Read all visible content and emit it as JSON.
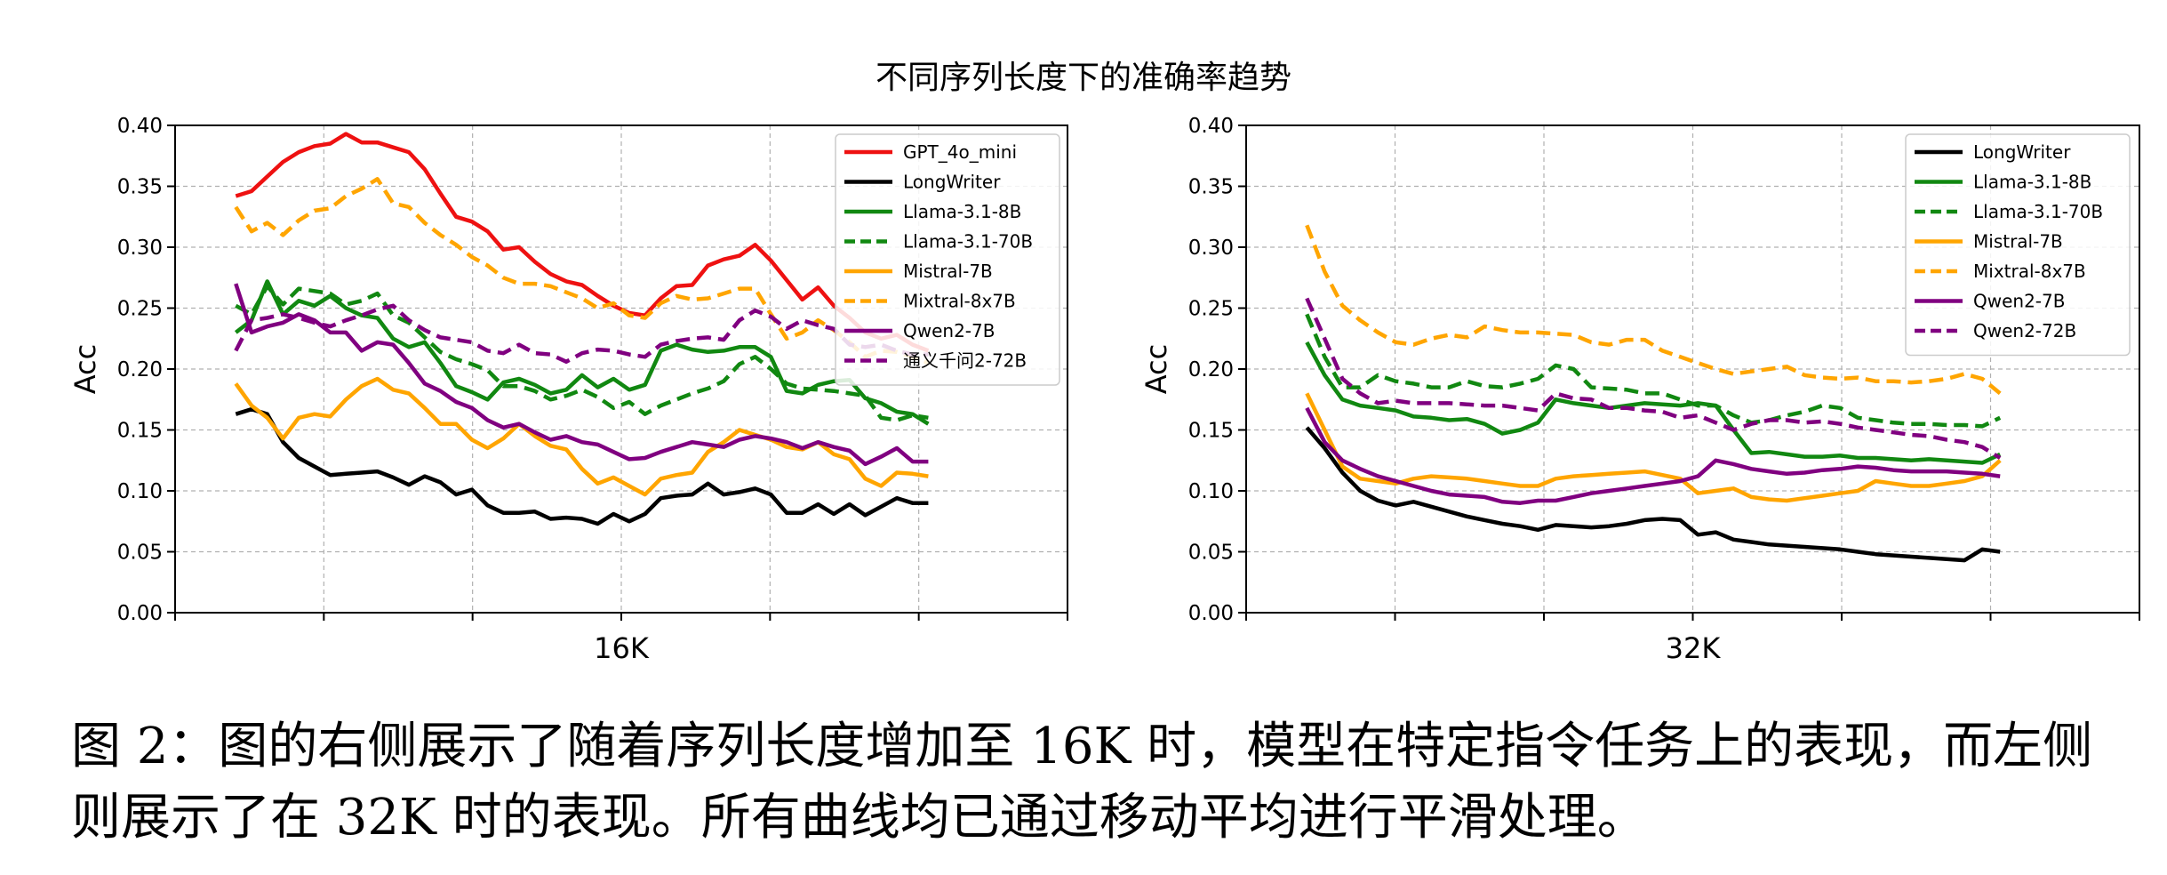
{
  "figure": {
    "title": "不同序列长度下的准确率趋势",
    "caption": "图 2：图的右侧展示了随着序列长度增加至 16K 时，模型在特定指令任务上的表现，而左侧则展示了在 32K 时的表现。所有曲线均已通过移动平均进行平滑处理。"
  },
  "colors": {
    "red": "#ee1111",
    "black": "#000000",
    "green": "#118811",
    "orange": "#ffa500",
    "purple": "#800080",
    "grid": "#b0b0b0"
  },
  "chart_data": [
    {
      "type": "line",
      "xlabel": "16K",
      "ylabel": "Acc",
      "ylim": [
        0,
        0.4
      ],
      "yticks": [
        "0.00",
        "0.05",
        "0.10",
        "0.15",
        "0.20",
        "0.25",
        "0.30",
        "0.35",
        "0.40"
      ],
      "grid": true,
      "legend_position": "top-right",
      "series": [
        {
          "name": "GPT_4o_mini",
          "color": "#ee1111",
          "dash": false,
          "values": [
            0.342,
            0.346,
            0.358,
            0.37,
            0.378,
            0.383,
            0.385,
            0.393,
            0.386,
            0.386,
            0.382,
            0.378,
            0.364,
            0.344,
            0.325,
            0.321,
            0.313,
            0.298,
            0.3,
            0.288,
            0.278,
            0.272,
            0.269,
            0.26,
            0.252,
            0.246,
            0.244,
            0.258,
            0.268,
            0.269,
            0.285,
            0.29,
            0.293,
            0.302,
            0.289,
            0.273,
            0.257,
            0.267,
            0.252,
            0.242,
            0.23,
            0.225,
            0.228,
            0.22,
            0.215
          ]
        },
        {
          "name": "LongWriter",
          "color": "#000000",
          "dash": false,
          "values": [
            0.163,
            0.167,
            0.163,
            0.14,
            0.127,
            0.12,
            0.113,
            0.114,
            0.115,
            0.116,
            0.111,
            0.105,
            0.112,
            0.107,
            0.097,
            0.101,
            0.088,
            0.082,
            0.082,
            0.083,
            0.077,
            0.078,
            0.077,
            0.073,
            0.081,
            0.075,
            0.081,
            0.094,
            0.096,
            0.097,
            0.106,
            0.097,
            0.099,
            0.102,
            0.097,
            0.082,
            0.082,
            0.089,
            0.081,
            0.089,
            0.08,
            0.087,
            0.094,
            0.09,
            0.09
          ]
        },
        {
          "name": "Llama-3.1-8B",
          "color": "#118811",
          "dash": false,
          "values": [
            0.23,
            0.24,
            0.272,
            0.245,
            0.256,
            0.252,
            0.26,
            0.25,
            0.244,
            0.242,
            0.225,
            0.218,
            0.222,
            0.205,
            0.186,
            0.181,
            0.175,
            0.189,
            0.192,
            0.187,
            0.18,
            0.183,
            0.195,
            0.185,
            0.192,
            0.183,
            0.187,
            0.215,
            0.22,
            0.216,
            0.214,
            0.215,
            0.218,
            0.218,
            0.21,
            0.182,
            0.18,
            0.187,
            0.19,
            0.191,
            0.176,
            0.172,
            0.165,
            0.163,
            0.155
          ]
        },
        {
          "name": "Llama-3.1-70B",
          "color": "#118811",
          "dash": true,
          "values": [
            0.252,
            0.245,
            0.268,
            0.253,
            0.266,
            0.264,
            0.262,
            0.253,
            0.256,
            0.262,
            0.244,
            0.238,
            0.226,
            0.214,
            0.208,
            0.204,
            0.199,
            0.186,
            0.186,
            0.182,
            0.175,
            0.178,
            0.183,
            0.177,
            0.168,
            0.173,
            0.163,
            0.17,
            0.175,
            0.18,
            0.184,
            0.19,
            0.204,
            0.21,
            0.2,
            0.188,
            0.184,
            0.183,
            0.182,
            0.18,
            0.178,
            0.16,
            0.158,
            0.162,
            0.16
          ]
        },
        {
          "name": "Mistral-7B",
          "color": "#ffa500",
          "dash": false,
          "values": [
            0.188,
            0.17,
            0.16,
            0.143,
            0.16,
            0.163,
            0.161,
            0.175,
            0.186,
            0.192,
            0.183,
            0.18,
            0.168,
            0.155,
            0.155,
            0.142,
            0.135,
            0.143,
            0.155,
            0.145,
            0.137,
            0.134,
            0.118,
            0.106,
            0.111,
            0.104,
            0.097,
            0.11,
            0.113,
            0.115,
            0.132,
            0.14,
            0.15,
            0.146,
            0.142,
            0.136,
            0.134,
            0.14,
            0.13,
            0.126,
            0.11,
            0.104,
            0.115,
            0.114,
            0.112
          ]
        },
        {
          "name": "Mixtral-8x7B",
          "color": "#ffa500",
          "dash": true,
          "values": [
            0.333,
            0.313,
            0.32,
            0.31,
            0.322,
            0.33,
            0.332,
            0.342,
            0.348,
            0.356,
            0.336,
            0.333,
            0.32,
            0.31,
            0.302,
            0.292,
            0.285,
            0.275,
            0.27,
            0.27,
            0.268,
            0.263,
            0.258,
            0.25,
            0.254,
            0.244,
            0.242,
            0.254,
            0.26,
            0.257,
            0.258,
            0.262,
            0.266,
            0.266,
            0.245,
            0.225,
            0.23,
            0.24,
            0.232,
            0.222,
            0.21,
            0.215,
            0.214,
            0.21,
            0.205
          ]
        },
        {
          "name": "Qwen2-7B",
          "color": "#800080",
          "dash": false,
          "values": [
            0.27,
            0.23,
            0.235,
            0.238,
            0.245,
            0.24,
            0.23,
            0.23,
            0.215,
            0.222,
            0.22,
            0.205,
            0.188,
            0.182,
            0.173,
            0.168,
            0.158,
            0.152,
            0.155,
            0.148,
            0.142,
            0.145,
            0.14,
            0.138,
            0.132,
            0.126,
            0.127,
            0.132,
            0.136,
            0.14,
            0.138,
            0.136,
            0.142,
            0.145,
            0.143,
            0.14,
            0.135,
            0.14,
            0.136,
            0.133,
            0.122,
            0.128,
            0.135,
            0.124,
            0.124
          ]
        },
        {
          "name": "通义千问2-72B",
          "color": "#800080",
          "dash": true,
          "values": [
            0.215,
            0.24,
            0.242,
            0.245,
            0.242,
            0.238,
            0.235,
            0.24,
            0.244,
            0.249,
            0.252,
            0.24,
            0.232,
            0.226,
            0.224,
            0.222,
            0.215,
            0.213,
            0.22,
            0.213,
            0.212,
            0.206,
            0.213,
            0.216,
            0.215,
            0.212,
            0.21,
            0.22,
            0.223,
            0.225,
            0.226,
            0.224,
            0.24,
            0.248,
            0.243,
            0.233,
            0.24,
            0.236,
            0.233,
            0.22,
            0.218,
            0.22,
            0.215,
            0.212,
            0.212
          ]
        }
      ]
    },
    {
      "type": "line",
      "xlabel": "32K",
      "ylabel": "Acc",
      "ylim": [
        0,
        0.4
      ],
      "yticks": [
        "0.00",
        "0.05",
        "0.10",
        "0.15",
        "0.20",
        "0.25",
        "0.30",
        "0.35",
        "0.40"
      ],
      "grid": true,
      "legend_position": "top-right",
      "series": [
        {
          "name": "LongWriter",
          "color": "#000000",
          "dash": false,
          "values": [
            0.152,
            0.135,
            0.115,
            0.1,
            0.092,
            0.088,
            0.091,
            0.087,
            0.083,
            0.079,
            0.076,
            0.073,
            0.071,
            0.068,
            0.072,
            0.071,
            0.07,
            0.071,
            0.073,
            0.076,
            0.077,
            0.076,
            0.064,
            0.066,
            0.06,
            0.058,
            0.056,
            0.055,
            0.054,
            0.053,
            0.052,
            0.05,
            0.048,
            0.047,
            0.046,
            0.045,
            0.044,
            0.043,
            0.052,
            0.05
          ]
        },
        {
          "name": "Llama-3.1-8B",
          "color": "#118811",
          "dash": false,
          "values": [
            0.222,
            0.195,
            0.175,
            0.17,
            0.168,
            0.166,
            0.161,
            0.16,
            0.158,
            0.159,
            0.155,
            0.147,
            0.15,
            0.156,
            0.175,
            0.172,
            0.17,
            0.168,
            0.17,
            0.172,
            0.171,
            0.17,
            0.172,
            0.17,
            0.15,
            0.131,
            0.132,
            0.13,
            0.128,
            0.128,
            0.129,
            0.127,
            0.127,
            0.126,
            0.125,
            0.126,
            0.125,
            0.124,
            0.123,
            0.13
          ]
        },
        {
          "name": "Llama-3.1-70B",
          "color": "#118811",
          "dash": true,
          "values": [
            0.245,
            0.21,
            0.185,
            0.185,
            0.195,
            0.19,
            0.188,
            0.185,
            0.185,
            0.19,
            0.186,
            0.185,
            0.188,
            0.192,
            0.203,
            0.2,
            0.185,
            0.184,
            0.183,
            0.18,
            0.18,
            0.175,
            0.17,
            0.17,
            0.162,
            0.156,
            0.158,
            0.162,
            0.165,
            0.17,
            0.168,
            0.16,
            0.158,
            0.156,
            0.155,
            0.155,
            0.154,
            0.154,
            0.153,
            0.16
          ]
        },
        {
          "name": "Mistral-7B",
          "color": "#ffa500",
          "dash": false,
          "values": [
            0.18,
            0.15,
            0.12,
            0.11,
            0.108,
            0.106,
            0.11,
            0.112,
            0.111,
            0.11,
            0.108,
            0.106,
            0.104,
            0.104,
            0.11,
            0.112,
            0.113,
            0.114,
            0.115,
            0.116,
            0.113,
            0.11,
            0.098,
            0.1,
            0.102,
            0.095,
            0.093,
            0.092,
            0.094,
            0.096,
            0.098,
            0.1,
            0.108,
            0.106,
            0.104,
            0.104,
            0.106,
            0.108,
            0.112,
            0.125
          ]
        },
        {
          "name": "Mixtral-8x7B",
          "color": "#ffa500",
          "dash": true,
          "values": [
            0.318,
            0.28,
            0.252,
            0.24,
            0.23,
            0.222,
            0.22,
            0.225,
            0.228,
            0.226,
            0.235,
            0.232,
            0.23,
            0.23,
            0.229,
            0.228,
            0.222,
            0.22,
            0.224,
            0.224,
            0.215,
            0.21,
            0.205,
            0.2,
            0.196,
            0.198,
            0.2,
            0.202,
            0.195,
            0.193,
            0.192,
            0.193,
            0.19,
            0.19,
            0.189,
            0.19,
            0.192,
            0.196,
            0.192,
            0.18
          ]
        },
        {
          "name": "Qwen2-7B",
          "color": "#800080",
          "dash": false,
          "values": [
            0.168,
            0.14,
            0.125,
            0.118,
            0.112,
            0.108,
            0.104,
            0.1,
            0.097,
            0.096,
            0.095,
            0.091,
            0.09,
            0.092,
            0.092,
            0.095,
            0.098,
            0.1,
            0.102,
            0.104,
            0.106,
            0.108,
            0.112,
            0.125,
            0.122,
            0.118,
            0.116,
            0.114,
            0.115,
            0.117,
            0.118,
            0.12,
            0.119,
            0.117,
            0.116,
            0.116,
            0.116,
            0.115,
            0.114,
            0.112
          ]
        },
        {
          "name": "Qwen2-72B",
          "color": "#800080",
          "dash": true,
          "values": [
            0.258,
            0.225,
            0.192,
            0.18,
            0.172,
            0.174,
            0.172,
            0.172,
            0.172,
            0.171,
            0.17,
            0.17,
            0.168,
            0.166,
            0.18,
            0.176,
            0.175,
            0.168,
            0.168,
            0.166,
            0.165,
            0.16,
            0.162,
            0.156,
            0.15,
            0.155,
            0.158,
            0.158,
            0.156,
            0.157,
            0.155,
            0.152,
            0.15,
            0.148,
            0.146,
            0.145,
            0.142,
            0.14,
            0.136,
            0.127
          ]
        }
      ]
    }
  ]
}
